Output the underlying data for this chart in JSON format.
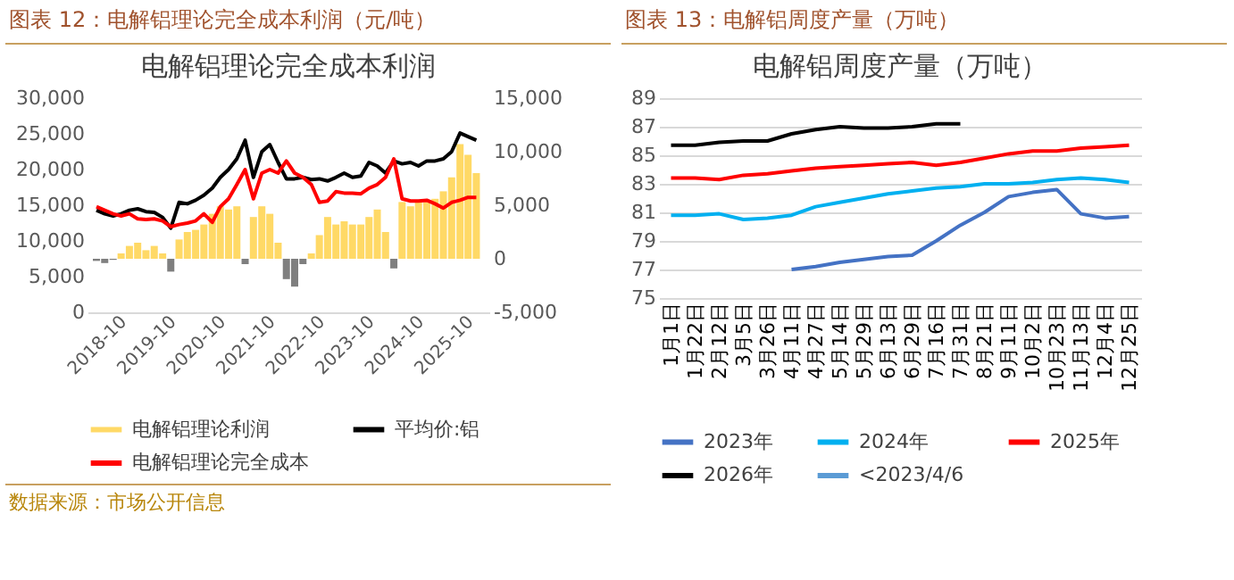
{
  "chart_data": [
    {
      "type": "line",
      "title": "图表 12：电解铝理论完全成本利润（元/吨）",
      "subtitle": "电解铝理论完全成本利润",
      "annotations": [
        "数据来源：市场公开信息"
      ],
      "x": [
        "2018-10",
        "2018-12",
        "2019-02",
        "2019-04",
        "2019-06",
        "2019-08",
        "2019-10",
        "2019-12",
        "2020-02",
        "2020-04",
        "2020-06",
        "2020-08",
        "2020-10",
        "2020-12",
        "2021-02",
        "2021-04",
        "2021-06",
        "2021-08",
        "2021-10",
        "2021-12",
        "2022-02",
        "2022-04",
        "2022-06",
        "2022-08",
        "2022-10",
        "2022-12",
        "2023-02",
        "2023-04",
        "2023-06",
        "2023-08",
        "2023-10",
        "2023-12",
        "2024-02",
        "2024-04",
        "2024-06",
        "2024-08",
        "2024-10",
        "2024-12",
        "2025-02",
        "2025-04",
        "2025-06",
        "2025-08",
        "2025-10",
        "2025-12",
        "2026-02",
        "2026-04",
        "2026-06"
      ],
      "xlim": [
        "2018-10",
        "2026-07"
      ],
      "xticks": [
        "2018-10",
        "2019-10",
        "2020-10",
        "2021-10",
        "2022-10",
        "2023-10",
        "2024-10",
        "2025-10"
      ],
      "ylim": [
        0,
        30000
      ],
      "yticks": [
        0,
        {
          "value": 5000,
          "label": "5,000"
        },
        {
          "value": 10000,
          "label": "10,000"
        },
        {
          "value": 15000,
          "label": "15,000"
        },
        {
          "value": 20000,
          "label": "20,000"
        },
        {
          "value": 25000,
          "label": "25,000"
        },
        {
          "value": 30000,
          "label": "30,000"
        }
      ],
      "y2lim": [
        -5000,
        15000
      ],
      "y2ticks": [
        {
          "value": -5000,
          "label": "-5,000"
        },
        0,
        {
          "value": 5000,
          "label": "5,000"
        },
        {
          "value": 10000,
          "label": "10,000"
        },
        {
          "value": 15000,
          "label": "15,000"
        }
      ],
      "legend": "bottom",
      "grid": false,
      "series": [
        {
          "name": "电解铝理论利润",
          "type": "bar",
          "axis": "y2",
          "color": "#ffd966",
          "colors": [
            "#7f7f7f",
            "#7f7f7f",
            "#7f7f7f",
            "#ffd966",
            "#ffd966",
            "#ffd966",
            "#ffd966",
            "#ffd966",
            "#ffd966",
            "#7f7f7f",
            "#ffd966",
            "#ffd966",
            "#ffd966",
            "#ffd966",
            "#ffd966",
            "#ffd966",
            "#ffd966",
            "#ffd966",
            "#7f7f7f",
            "#ffd966",
            "#ffd966",
            "#ffd966",
            "#ffd966",
            "#7f7f7f",
            "#7f7f7f",
            "#7f7f7f",
            "#ffd966",
            "#ffd966",
            "#ffd966",
            "#ffd966",
            "#ffd966",
            "#ffd966",
            "#ffd966",
            "#ffd966",
            "#ffd966",
            "#ffd966",
            "#7f7f7f",
            "#ffd966",
            "#ffd966",
            "#ffd966",
            "#ffd966",
            "#ffd966",
            "#ffd966",
            "#ffd966",
            "#ffd966",
            "#ffd966",
            "#ffd966"
          ],
          "values": [
            -200,
            -400,
            -100,
            500,
            1200,
            1500,
            800,
            1200,
            500,
            -1200,
            1800,
            2500,
            2700,
            3200,
            4200,
            4900,
            4600,
            4900,
            -500,
            3900,
            4900,
            4200,
            1500,
            -1900,
            -2600,
            -500,
            500,
            2200,
            3900,
            3200,
            3500,
            3200,
            3200,
            3900,
            4600,
            2500,
            -900,
            5300,
            4900,
            5300,
            5300,
            5600,
            6300,
            7600,
            10700,
            9700,
            8000
          ]
        },
        {
          "name": "平均价:铝",
          "type": "line",
          "color": "#000000",
          "values": [
            14300,
            13800,
            13500,
            13800,
            14300,
            14500,
            14100,
            14000,
            13300,
            11800,
            15400,
            15200,
            15700,
            16400,
            17400,
            18900,
            20000,
            21500,
            24100,
            18900,
            22500,
            23500,
            21000,
            18700,
            18700,
            18900,
            18600,
            18700,
            18400,
            18900,
            19500,
            18900,
            19100,
            21000,
            20500,
            19500,
            21200,
            20800,
            21000,
            20500,
            21200,
            21200,
            21500,
            22500,
            25100,
            24600,
            24100
          ]
        },
        {
          "name": "电解铝理论完全成本",
          "type": "line",
          "color": "#ff0000",
          "values": [
            14800,
            14300,
            13800,
            13500,
            13800,
            13100,
            13000,
            13100,
            12800,
            12000,
            12300,
            12500,
            12800,
            13800,
            12600,
            14800,
            15900,
            17900,
            20000,
            15900,
            19500,
            20000,
            19500,
            21200,
            19500,
            18900,
            17900,
            15400,
            15600,
            16900,
            16700,
            16700,
            16600,
            17400,
            17900,
            18900,
            21500,
            15900,
            15600,
            15600,
            15700,
            15200,
            14600,
            15400,
            15700,
            16100,
            16100
          ]
        }
      ]
    },
    {
      "type": "line",
      "title": "图表 13：电解铝周度产量（万吨）",
      "subtitle": "电解铝周度产量（万吨）",
      "categories": [
        "1月1日",
        "1月22日",
        "2月12日",
        "3月5日",
        "3月26日",
        "4月11日",
        "4月27日",
        "5月14日",
        "5月29日",
        "6月13日",
        "6月29日",
        "7月16日",
        "7月31日",
        "8月21日",
        "9月11日",
        "10月2日",
        "10月23日",
        "11月13日",
        "12月4日",
        "12月25日"
      ],
      "ylim": [
        75,
        89
      ],
      "yticks": [
        75,
        77,
        79,
        81,
        83,
        85,
        87,
        89
      ],
      "grid": "y",
      "legend": "bottom",
      "series": [
        {
          "name": "2023年",
          "color": "#4472c4",
          "values": [
            null,
            null,
            null,
            null,
            null,
            77.0,
            77.2,
            77.5,
            77.7,
            77.9,
            78.0,
            79.0,
            80.1,
            81.0,
            82.1,
            82.4,
            82.6,
            80.9,
            80.6,
            80.7
          ]
        },
        {
          "name": "2024年",
          "color": "#00b0f0",
          "values": [
            80.8,
            80.8,
            80.9,
            80.5,
            80.6,
            80.8,
            81.4,
            81.7,
            82.0,
            82.3,
            82.5,
            82.7,
            82.8,
            83.0,
            83.0,
            83.1,
            83.3,
            83.4,
            83.3,
            83.1
          ]
        },
        {
          "name": "2025年",
          "color": "#ff0000",
          "values": [
            83.4,
            83.4,
            83.3,
            83.6,
            83.7,
            83.9,
            84.1,
            84.2,
            84.3,
            84.4,
            84.5,
            84.3,
            84.5,
            84.8,
            85.1,
            85.3,
            85.3,
            85.5,
            85.6,
            85.7
          ]
        },
        {
          "name": "2026年",
          "color": "#000000",
          "values": [
            85.7,
            85.7,
            85.9,
            86.0,
            86.0,
            86.5,
            86.8,
            87.0,
            86.9,
            86.9,
            87.0,
            87.2,
            87.2,
            null,
            null,
            null,
            null,
            null,
            null,
            null
          ]
        },
        {
          "name": "<2023/4/6",
          "color": "#5b9bd5",
          "values": [
            null,
            null,
            null,
            null,
            null,
            null,
            null,
            null,
            null,
            null,
            null,
            null,
            null,
            null,
            null,
            null,
            null,
            null,
            null,
            null
          ]
        }
      ]
    }
  ]
}
